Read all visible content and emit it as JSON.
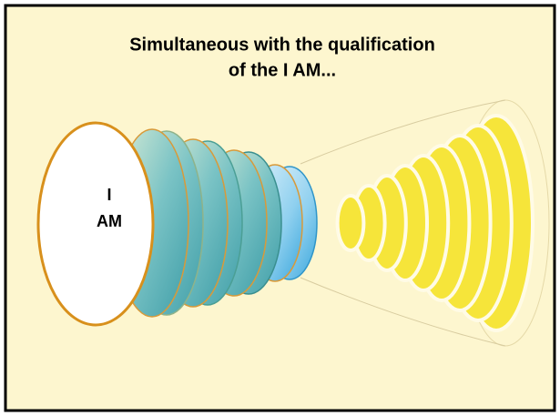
{
  "title": {
    "lines": [
      "Simultaneous with the qualification",
      "of the I AM..."
    ]
  },
  "label": {
    "lines": [
      "I",
      "AM"
    ]
  }
}
